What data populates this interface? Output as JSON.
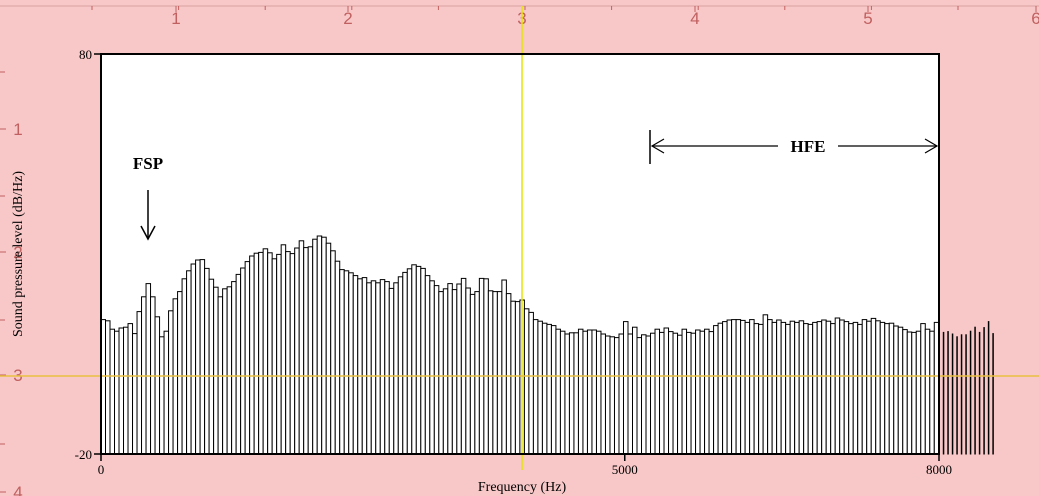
{
  "ruler": {
    "top_labels": [
      "1",
      "2",
      "3",
      "4",
      "5",
      "6"
    ],
    "left_labels": [
      "1",
      "2",
      "3",
      "4"
    ]
  },
  "colors": {
    "background": "#f8c8c8",
    "plot_bg": "#ffffff",
    "bar_fill": "#ffffff",
    "bar_stroke": "#000000",
    "guide_vertical": "#e6e600",
    "guide_horizontal": "#e8c040",
    "ruler_text": "#c06060"
  },
  "chart_data": {
    "type": "bar",
    "title": "",
    "xlabel": "Frequency (Hz)",
    "ylabel": "Sound pressure level (dB/Hz)",
    "xlim": [
      0,
      8000
    ],
    "ylim": [
      -20,
      80
    ],
    "x_ticks": [
      "0",
      "5000",
      "8000"
    ],
    "x_tick_values": [
      0,
      5000,
      8000
    ],
    "y_ticks": [
      "80",
      "-20"
    ],
    "y_tick_values": [
      80,
      -20
    ],
    "grid": false,
    "annotations": {
      "fsp_label": "FSP",
      "fsp_x": 400,
      "hfe_label": "HFE",
      "hfe_start": 5000,
      "hfe_end": 8000
    },
    "bin_width_hz": 43,
    "values": [
      13.6,
      13.3,
      11.2,
      10.7,
      11.5,
      11.7,
      12.6,
      10.1,
      15.6,
      19.3,
      22.6,
      19.3,
      14.3,
      9.3,
      10.7,
      15.8,
      18.8,
      20.6,
      23.8,
      25.8,
      27.5,
      28.5,
      28.6,
      26.4,
      23.7,
      21.7,
      19.3,
      21.3,
      21.8,
      23.1,
      24.9,
      26.5,
      28.1,
      29.5,
      30.2,
      30.4,
      31.3,
      30.3,
      28.8,
      29.9,
      32.3,
      30.6,
      30.1,
      31.5,
      33.3,
      31.6,
      31.8,
      33.7,
      34.5,
      34.2,
      32.7,
      30.8,
      28.2,
      26.1,
      25.8,
      25.3,
      24.6,
      23.8,
      24.1,
      22.8,
      23.3,
      22.8,
      23.6,
      23.1,
      21.4,
      22.8,
      24.3,
      25.4,
      26.3,
      27.3,
      26.9,
      26.4,
      24.6,
      23.3,
      22.1,
      20.6,
      21.3,
      22.6,
      21.1,
      22.5,
      23.9,
      21.5,
      19.9,
      20.6,
      23.9,
      23.8,
      20.8,
      20.6,
      20.6,
      23.5,
      20.1,
      18.2,
      18.1,
      18.5,
      16.3,
      15.4,
      13.6,
      13.2,
      12.7,
      12.4,
      12.1,
      11.2,
      10.7,
      10.0,
      10.3,
      10.3,
      11.2,
      10.7,
      11.0,
      11.0,
      10.7,
      10.0,
      9.5,
      9.3,
      9.1,
      10.0,
      13.1,
      10.0,
      11.7,
      9.1,
      9.8,
      9.5,
      10.2,
      11.2,
      10.4,
      11.5,
      10.6,
      10.2,
      9.7,
      11.2,
      10.4,
      10.2,
      11.0,
      10.7,
      11.2,
      10.6,
      12.1,
      12.7,
      13.1,
      13.5,
      13.6,
      13.6,
      13.4,
      12.9,
      13.6,
      12.6,
      12.4,
      14.8,
      13.6,
      12.9,
      13.5,
      12.9,
      12.4,
      13.2,
      12.9,
      13.3,
      12.6,
      12.4,
      12.9,
      13.1,
      13.5,
      13.2,
      12.6,
      14.0,
      13.5,
      13.1,
      12.6,
      12.9,
      12.4,
      13.6,
      13.2,
      13.9,
      13.3,
      12.9,
      12.6,
      12.7,
      12.0,
      11.7,
      11.1,
      10.5,
      10.4,
      10.7,
      12.6,
      11.2,
      10.7,
      12.9,
      13.1,
      10.4,
      10.6,
      10.0,
      9.3,
      9.8,
      9.8,
      10.7,
      11.7,
      10.4,
      11.6,
      13.1,
      10.1
    ]
  }
}
